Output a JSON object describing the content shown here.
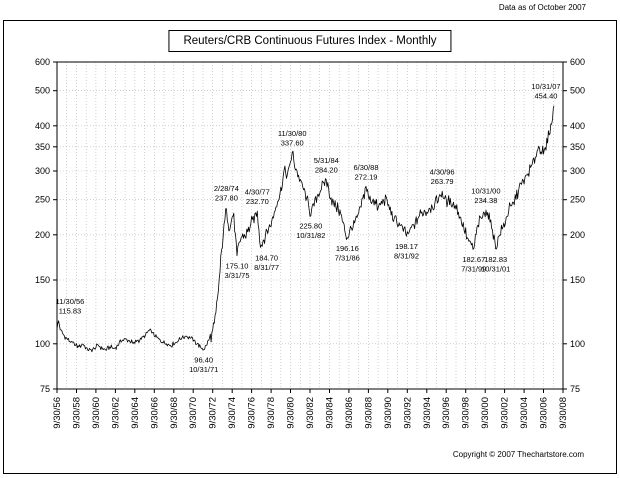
{
  "page": {
    "header_note": "Data as of October 2007",
    "title": "Reuters/CRB Continuous Futures Index - Monthly",
    "footer": "Copyright © 2007 Thechartstore.com"
  },
  "chart_data": {
    "type": "line",
    "title": "Reuters/CRB Continuous Futures Index - Monthly",
    "series_name": "Reuters/CRB Continuous Futures Index (monthly)",
    "y_scale": "log",
    "y_range": [
      75,
      600
    ],
    "y_ticks": [
      600,
      500,
      400,
      350,
      300,
      250,
      200,
      150,
      100,
      75
    ],
    "x_range_years": [
      1956.75,
      2008.75
    ],
    "x_tick_labels": [
      "9/30/56",
      "9/30/58",
      "9/30/60",
      "9/30/62",
      "9/30/64",
      "9/30/66",
      "9/30/68",
      "9/30/70",
      "9/30/72",
      "9/30/74",
      "9/30/76",
      "9/30/78",
      "9/30/80",
      "9/30/82",
      "9/30/84",
      "9/30/86",
      "9/30/88",
      "9/30/90",
      "9/30/92",
      "9/30/94",
      "9/30/96",
      "9/30/98",
      "9/30/00",
      "9/30/02",
      "9/30/04",
      "9/30/06",
      "9/30/08"
    ],
    "grid": "dotted",
    "line_color": "#000000",
    "keypoints": [
      [
        1956.75,
        110
      ],
      [
        1956.92,
        115.83
      ],
      [
        1957.1,
        109
      ],
      [
        1957.4,
        106
      ],
      [
        1957.8,
        103
      ],
      [
        1958.2,
        101
      ],
      [
        1958.6,
        99
      ],
      [
        1959,
        98
      ],
      [
        1959.4,
        100
      ],
      [
        1959.8,
        97
      ],
      [
        1960.2,
        96
      ],
      [
        1960.6,
        97
      ],
      [
        1961,
        99
      ],
      [
        1961.4,
        97
      ],
      [
        1961.8,
        96
      ],
      [
        1962.2,
        98
      ],
      [
        1962.6,
        97
      ],
      [
        1963,
        99
      ],
      [
        1963.4,
        102
      ],
      [
        1963.8,
        103
      ],
      [
        1964.2,
        102
      ],
      [
        1964.6,
        100
      ],
      [
        1965,
        102
      ],
      [
        1965.4,
        103
      ],
      [
        1965.8,
        105
      ],
      [
        1966.2,
        109
      ],
      [
        1966.5,
        107
      ],
      [
        1966.8,
        105
      ],
      [
        1967.2,
        103
      ],
      [
        1967.6,
        101
      ],
      [
        1968,
        100
      ],
      [
        1968.4,
        99
      ],
      [
        1968.8,
        100
      ],
      [
        1969.2,
        102
      ],
      [
        1969.6,
        104
      ],
      [
        1970,
        105
      ],
      [
        1970.4,
        104
      ],
      [
        1970.8,
        102
      ],
      [
        1971.2,
        100
      ],
      [
        1971.5,
        98
      ],
      [
        1971.83,
        96.4
      ],
      [
        1972.1,
        99
      ],
      [
        1972.4,
        103
      ],
      [
        1972.7,
        107
      ],
      [
        1972.9,
        112
      ],
      [
        1973.1,
        122
      ],
      [
        1973.3,
        138
      ],
      [
        1973.5,
        158
      ],
      [
        1973.65,
        178
      ],
      [
        1973.8,
        198
      ],
      [
        1973.95,
        212
      ],
      [
        1974.16,
        237.8
      ],
      [
        1974.35,
        215
      ],
      [
        1974.55,
        208
      ],
      [
        1974.75,
        224
      ],
      [
        1974.9,
        229
      ],
      [
        1975.05,
        203
      ],
      [
        1975.25,
        175.1
      ],
      [
        1975.45,
        188
      ],
      [
        1975.65,
        196
      ],
      [
        1975.85,
        200
      ],
      [
        1976.1,
        198
      ],
      [
        1976.35,
        204
      ],
      [
        1976.6,
        211
      ],
      [
        1976.85,
        219
      ],
      [
        1977.1,
        227
      ],
      [
        1977.33,
        232.7
      ],
      [
        1977.5,
        207
      ],
      [
        1977.67,
        184.7
      ],
      [
        1977.9,
        192
      ],
      [
        1978.2,
        201
      ],
      [
        1978.5,
        208
      ],
      [
        1978.8,
        216
      ],
      [
        1979.1,
        232
      ],
      [
        1979.4,
        248
      ],
      [
        1979.7,
        262
      ],
      [
        1979.95,
        283
      ],
      [
        1980.15,
        307
      ],
      [
        1980.35,
        288
      ],
      [
        1980.55,
        298
      ],
      [
        1980.75,
        318
      ],
      [
        1980.92,
        337.6
      ],
      [
        1981.1,
        318
      ],
      [
        1981.35,
        303
      ],
      [
        1981.6,
        290
      ],
      [
        1981.85,
        278
      ],
      [
        1982.1,
        266
      ],
      [
        1982.4,
        252
      ],
      [
        1982.65,
        238
      ],
      [
        1982.83,
        225.8
      ],
      [
        1983.05,
        238
      ],
      [
        1983.3,
        250
      ],
      [
        1983.6,
        260
      ],
      [
        1983.9,
        268
      ],
      [
        1984.15,
        276
      ],
      [
        1984.42,
        284.2
      ],
      [
        1984.65,
        268
      ],
      [
        1984.9,
        254
      ],
      [
        1985.15,
        245
      ],
      [
        1985.4,
        240
      ],
      [
        1985.65,
        236
      ],
      [
        1985.9,
        229
      ],
      [
        1986.1,
        216
      ],
      [
        1986.35,
        204
      ],
      [
        1986.58,
        196.16
      ],
      [
        1986.8,
        203
      ],
      [
        1987.05,
        209
      ],
      [
        1987.3,
        214
      ],
      [
        1987.6,
        222
      ],
      [
        1987.9,
        236
      ],
      [
        1988.2,
        252
      ],
      [
        1988.5,
        272.19
      ],
      [
        1988.75,
        255
      ],
      [
        1989,
        246
      ],
      [
        1989.25,
        251
      ],
      [
        1989.5,
        243
      ],
      [
        1989.75,
        237
      ],
      [
        1990,
        242
      ],
      [
        1990.3,
        249
      ],
      [
        1990.6,
        252
      ],
      [
        1990.85,
        240
      ],
      [
        1991.1,
        228
      ],
      [
        1991.4,
        221
      ],
      [
        1991.7,
        216
      ],
      [
        1992,
        212
      ],
      [
        1992.3,
        206
      ],
      [
        1992.67,
        198.17
      ],
      [
        1993,
        206
      ],
      [
        1993.3,
        211
      ],
      [
        1993.6,
        217
      ],
      [
        1993.9,
        224
      ],
      [
        1994.2,
        229
      ],
      [
        1994.5,
        234
      ],
      [
        1994.75,
        231
      ],
      [
        1995,
        237
      ],
      [
        1995.3,
        241
      ],
      [
        1995.6,
        244
      ],
      [
        1995.9,
        249
      ],
      [
        1996.1,
        256
      ],
      [
        1996.33,
        263.79
      ],
      [
        1996.6,
        251
      ],
      [
        1996.9,
        245
      ],
      [
        1997.15,
        250
      ],
      [
        1997.4,
        244
      ],
      [
        1997.7,
        240
      ],
      [
        1998,
        231
      ],
      [
        1998.3,
        219
      ],
      [
        1998.6,
        206
      ],
      [
        1998.9,
        196
      ],
      [
        1999.2,
        189
      ],
      [
        1999.58,
        182.67
      ],
      [
        1999.8,
        199
      ],
      [
        2000.05,
        212
      ],
      [
        2000.3,
        221
      ],
      [
        2000.55,
        227
      ],
      [
        2000.83,
        234.38
      ],
      [
        2001.05,
        226
      ],
      [
        2001.3,
        216
      ],
      [
        2001.5,
        206
      ],
      [
        2001.7,
        194
      ],
      [
        2001.83,
        182.83
      ],
      [
        2002.05,
        194
      ],
      [
        2002.3,
        201
      ],
      [
        2002.6,
        210
      ],
      [
        2002.9,
        222
      ],
      [
        2003.15,
        233
      ],
      [
        2003.4,
        238
      ],
      [
        2003.7,
        244
      ],
      [
        2003.95,
        256
      ],
      [
        2004.2,
        268
      ],
      [
        2004.45,
        274
      ],
      [
        2004.7,
        281
      ],
      [
        2004.95,
        288
      ],
      [
        2005.2,
        296
      ],
      [
        2005.45,
        305
      ],
      [
        2005.7,
        318
      ],
      [
        2005.95,
        332
      ],
      [
        2006.15,
        344
      ],
      [
        2006.35,
        351
      ],
      [
        2006.55,
        341
      ],
      [
        2006.75,
        334
      ],
      [
        2006.95,
        344
      ],
      [
        2007.15,
        361
      ],
      [
        2007.35,
        384
      ],
      [
        2007.55,
        403
      ],
      [
        2007.7,
        424
      ],
      [
        2007.83,
        454.4
      ]
    ],
    "annotations": [
      {
        "lines": [
          "11/30/56",
          "115.83"
        ],
        "x": 1956.92,
        "value": 115.83,
        "placement": "above"
      },
      {
        "lines": [
          "96.40",
          "10/31/71"
        ],
        "x": 1971.83,
        "value": 96.4,
        "placement": "below"
      },
      {
        "lines": [
          "2/28/74",
          "237.80"
        ],
        "x": 1974.16,
        "value": 237.8,
        "placement": "above"
      },
      {
        "lines": [
          "175.10",
          "3/31/75"
        ],
        "x": 1975.25,
        "value": 175.1,
        "placement": "below"
      },
      {
        "lines": [
          "4/30/77",
          "232.70"
        ],
        "x": 1977.33,
        "value": 232.7,
        "placement": "above"
      },
      {
        "lines": [
          "184.70",
          "8/31/77"
        ],
        "x": 1977.67,
        "value": 184.7,
        "placement": "below",
        "label_dx": 6
      },
      {
        "lines": [
          "11/30/80",
          "337.60"
        ],
        "x": 1980.92,
        "value": 337.6,
        "placement": "above"
      },
      {
        "lines": [
          "225.80",
          "10/31/82"
        ],
        "x": 1982.83,
        "value": 225.8,
        "placement": "below"
      },
      {
        "lines": [
          "5/31/84",
          "284.20"
        ],
        "x": 1984.42,
        "value": 284.2,
        "placement": "above"
      },
      {
        "lines": [
          "196.16",
          "7/31/86"
        ],
        "x": 1986.58,
        "value": 196.16,
        "placement": "below"
      },
      {
        "lines": [
          "6/30/88",
          "272.19"
        ],
        "x": 1988.5,
        "value": 272.19,
        "placement": "above"
      },
      {
        "lines": [
          "198.17",
          "8/31/92"
        ],
        "x": 1992.67,
        "value": 198.17,
        "placement": "below"
      },
      {
        "lines": [
          "4/30/96",
          "263.79"
        ],
        "x": 1996.33,
        "value": 263.79,
        "placement": "above"
      },
      {
        "lines": [
          "182.67",
          "7/31/99"
        ],
        "x": 1999.58,
        "value": 182.67,
        "placement": "below"
      },
      {
        "lines": [
          "10/31/00",
          "234.38"
        ],
        "x": 2000.83,
        "value": 234.38,
        "placement": "above"
      },
      {
        "lines": [
          "182.83",
          "10/31/01"
        ],
        "x": 2001.83,
        "value": 182.83,
        "placement": "below"
      },
      {
        "lines": [
          "10/31/07",
          "454.40"
        ],
        "x": 2007.83,
        "value": 454.4,
        "placement": "above"
      }
    ]
  }
}
